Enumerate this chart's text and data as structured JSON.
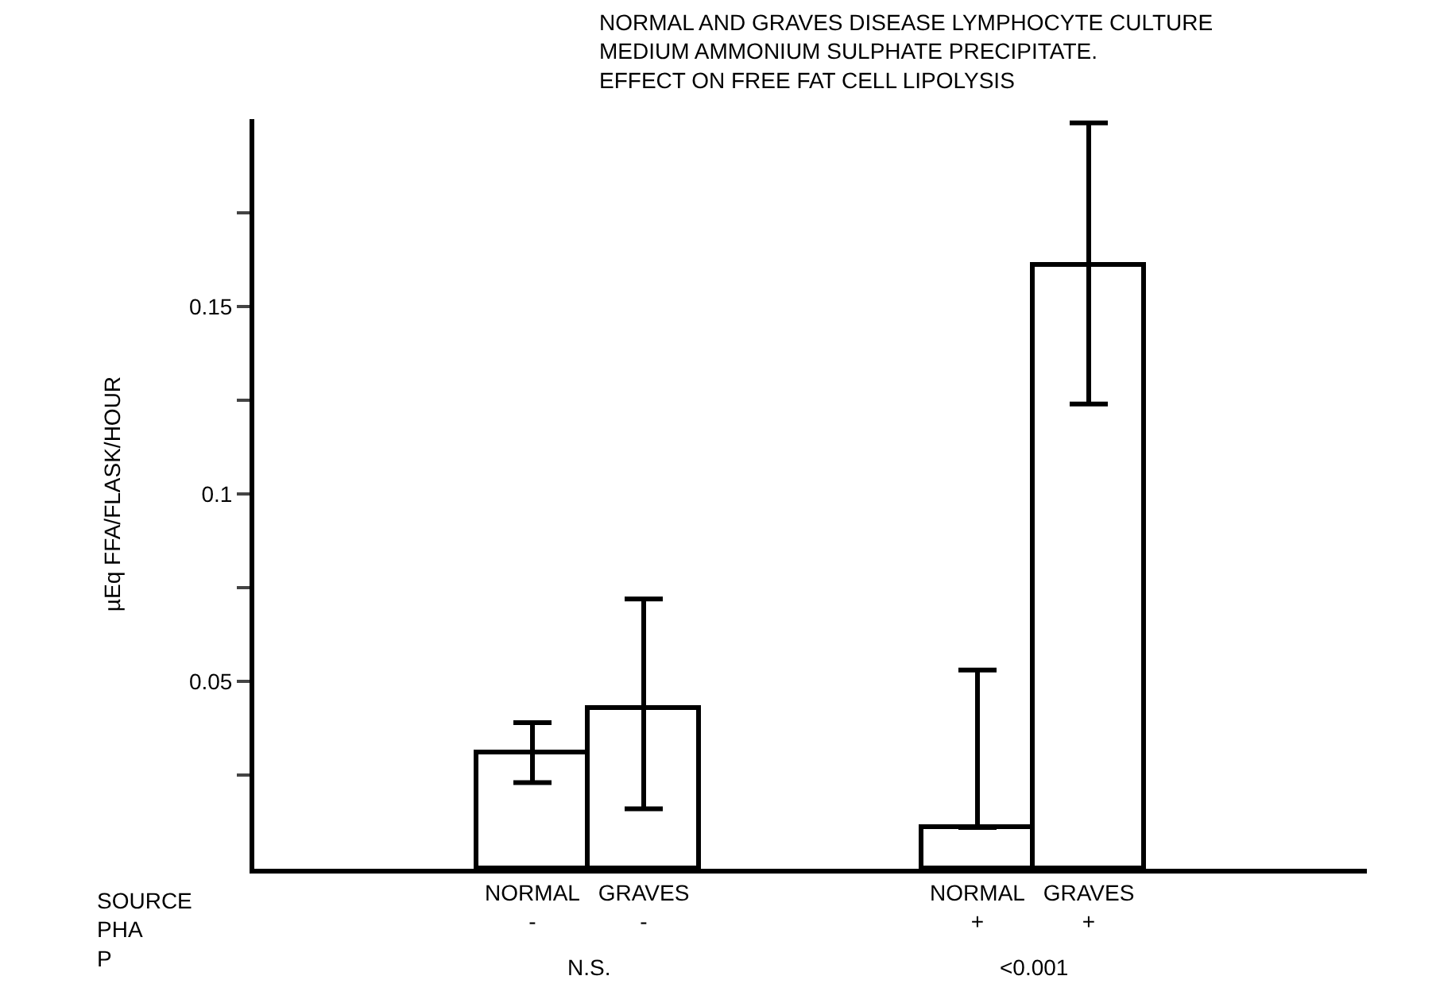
{
  "chart_data": {
    "type": "bar",
    "title": "NORMAL AND GRAVES DISEASE LYMPHOCYTE CULTURE\nMEDIUM AMMONIUM SULPHATE PRECIPITATE.\nEFFECT ON FREE FAT CELL LIPOLYSIS",
    "ylabel": "µEq FFA/FLASK/HOUR",
    "categories": [
      null,
      null,
      "NORMAL\n-",
      "GRAVES\n-",
      null,
      null,
      "NORMAL\n+",
      "GRAVES\n+",
      null,
      null
    ],
    "values": [
      null,
      null,
      0.031,
      0.043,
      null,
      null,
      0.011,
      0.161,
      null,
      null
    ],
    "errors": [
      null,
      null,
      [
        0.023,
        0.039
      ],
      [
        0.016,
        0.072
      ],
      null,
      null,
      [
        0.011,
        0.053
      ],
      [
        0.124,
        0.199
      ],
      null,
      null
    ],
    "color": "#ffffff",
    "ylim": [
      0,
      0.2
    ],
    "yticks": [
      {
        "value": 0.025,
        "label": null
      },
      0.05,
      {
        "value": 0.075,
        "label": null
      },
      0.1,
      {
        "value": 0.125,
        "label": null
      },
      0.15,
      {
        "value": 0.175,
        "label": null
      }
    ],
    "annotations": [
      "SOURCE\nPHA\nP",
      "N.S.",
      "<0.001"
    ],
    "grid": false,
    "legend": false
  }
}
